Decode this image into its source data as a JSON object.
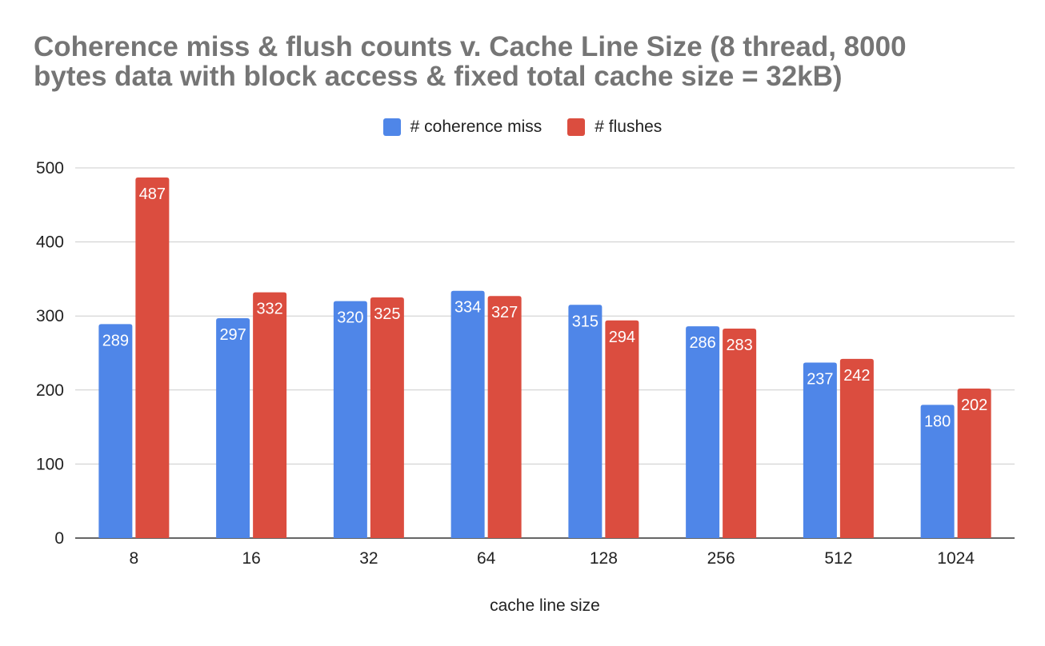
{
  "chart_data": {
    "type": "bar",
    "title_lines": [
      "Coherence miss & flush counts v. Cache Line Size (8 thread, 8000",
      "bytes data with block access & fixed total cache size = 32kB)"
    ],
    "xlabel": "cache line size",
    "ylabel": "",
    "categories": [
      "8",
      "16",
      "32",
      "64",
      "128",
      "256",
      "512",
      "1024"
    ],
    "series": [
      {
        "name": "# coherence miss",
        "color": "#4f86e8",
        "values": [
          289,
          297,
          320,
          334,
          315,
          286,
          237,
          180
        ]
      },
      {
        "name": "# flushes",
        "color": "#db4d3f",
        "values": [
          487,
          332,
          325,
          327,
          294,
          283,
          242,
          202
        ]
      }
    ],
    "ylim": [
      0,
      500
    ],
    "yticks": [
      0,
      100,
      200,
      300,
      400,
      500
    ],
    "grid": true,
    "legend_position": "top"
  }
}
